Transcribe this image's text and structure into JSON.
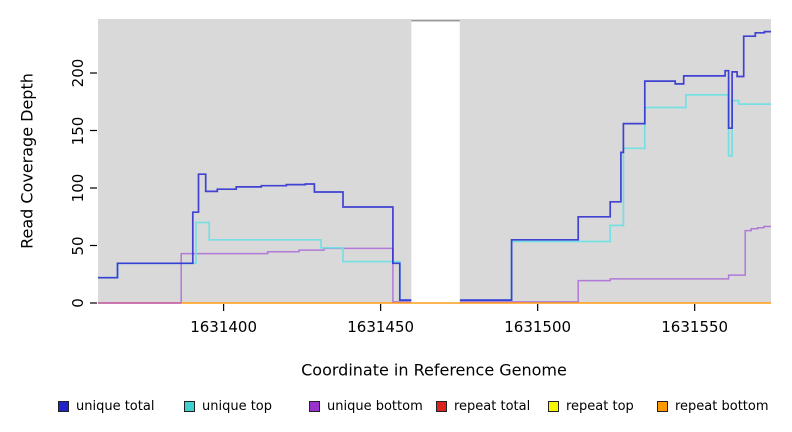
{
  "figure": {
    "xlabel": "Coordinate in Reference Genome",
    "ylabel": "Read Coverage Depth"
  },
  "chart_data": {
    "type": "line",
    "step": true,
    "title": "",
    "xlabel": "Coordinate in Reference Genome",
    "ylabel": "Read Coverage Depth",
    "x_range": [
      1631360,
      1631574.3
    ],
    "y_range": [
      0,
      246
    ],
    "x_ticks": [
      1631400,
      1631450,
      1631500,
      1631550
    ],
    "y_ticks": [
      0,
      50,
      100,
      150,
      200
    ],
    "grid": false,
    "panel_bg": "#d9d9d9",
    "legend_position": "bottom",
    "masked_region": {
      "x_start": 1631459.8,
      "x_end": 1631475.2,
      "note": "white vertical band, no data shown"
    },
    "series": [
      {
        "name": "unique total",
        "color": "#2222cc",
        "line_color": "#2b2bd0",
        "segments": [
          {
            "points": [
              [
                1631360,
                22
              ],
              [
                1631366.2,
                34.5
              ],
              [
                1631390.2,
                79
              ],
              [
                1631392,
                112
              ],
              [
                1631394.3,
                97
              ],
              [
                1631398,
                99
              ],
              [
                1631404,
                101
              ],
              [
                1631412,
                102
              ],
              [
                1631420,
                103
              ],
              [
                1631426,
                103.5
              ],
              [
                1631428.9,
                96.5
              ],
              [
                1631438,
                83.5
              ],
              [
                1631453.9,
                34.5
              ],
              [
                1631456.1,
                2.5
              ]
            ],
            "end": 1631459.8
          },
          {
            "points": [
              [
                1631475.2,
                2.5
              ],
              [
                1631491.7,
                55
              ],
              [
                1631512.9,
                75
              ],
              [
                1631523.1,
                88
              ],
              [
                1631526.5,
                131
              ],
              [
                1631527.3,
                156
              ],
              [
                1631534.1,
                193
              ],
              [
                1631543.8,
                190.5
              ],
              [
                1631546.5,
                197.5
              ],
              [
                1631559.7,
                202
              ],
              [
                1631560.8,
                152
              ],
              [
                1631561.9,
                201
              ],
              [
                1631563.5,
                197
              ],
              [
                1631565.6,
                232
              ],
              [
                1631569.3,
                235
              ],
              [
                1631572.2,
                236
              ]
            ],
            "end": 1631574.3
          }
        ]
      },
      {
        "name": "unique top",
        "color": "#3fd0d0",
        "line_color": "#76dfe3",
        "segments": [
          {
            "points": [
              [
                1631360,
                22
              ],
              [
                1631366.2,
                34.5
              ],
              [
                1631391.2,
                70
              ],
              [
                1631395.4,
                55
              ],
              [
                1631431,
                48
              ],
              [
                1631438,
                36
              ],
              [
                1631456.1,
                2.5
              ]
            ],
            "end": 1631459.8
          },
          {
            "points": [
              [
                1631475.2,
                2.5
              ],
              [
                1631491.7,
                53.5
              ],
              [
                1631523.1,
                67.5
              ],
              [
                1631527.3,
                134.5
              ],
              [
                1631534.1,
                170
              ],
              [
                1631547.2,
                181
              ],
              [
                1631560.8,
                128
              ],
              [
                1631561.9,
                176
              ],
              [
                1631564,
                173
              ]
            ],
            "end": 1631574.3
          }
        ]
      },
      {
        "name": "unique bottom",
        "color": "#9933cc",
        "line_color": "#b279d8",
        "segments": [
          {
            "points": [
              [
                1631360,
                0
              ],
              [
                1631386.5,
                43
              ],
              [
                1631414,
                44.5
              ],
              [
                1631424,
                46
              ],
              [
                1631432,
                47.5
              ],
              [
                1631453.9,
                1
              ]
            ],
            "end": 1631459.8
          },
          {
            "points": [
              [
                1631475.2,
                1
              ],
              [
                1631512.9,
                19.5
              ],
              [
                1631523.1,
                21
              ],
              [
                1631560.8,
                24.3
              ],
              [
                1631566.1,
                63
              ],
              [
                1631568,
                64.5
              ],
              [
                1631570,
                65.5
              ],
              [
                1631572,
                66.5
              ]
            ],
            "end": 1631574.3
          }
        ]
      },
      {
        "name": "repeat total",
        "color": "#dd2222",
        "line_color": "#c9629a",
        "note": "visible only at depth 0 on the left, blended with unique bottom",
        "segments": [
          {
            "points": [
              [
                1631360,
                0
              ]
            ],
            "end": 1631386.5
          }
        ]
      },
      {
        "name": "repeat top",
        "color": "#f5f500",
        "line_color": "#f5f500",
        "note": "not visibly distinct in plot (covered at depth 0)",
        "segments": []
      },
      {
        "name": "repeat bottom",
        "color": "#ff9900",
        "line_color": "#ff9c12",
        "segments": [
          {
            "points": [
              [
                1631386.5,
                0
              ]
            ],
            "end": 1631574.3
          }
        ]
      }
    ]
  },
  "legend": {
    "items": [
      {
        "label": "unique total",
        "color": "#2222cc"
      },
      {
        "label": "unique top",
        "color": "#3fd0d0"
      },
      {
        "label": "unique bottom",
        "color": "#9933cc"
      },
      {
        "label": "repeat total",
        "color": "#dd2222"
      },
      {
        "label": "repeat top",
        "color": "#f5f500"
      },
      {
        "label": "repeat bottom",
        "color": "#ff9900"
      }
    ]
  }
}
